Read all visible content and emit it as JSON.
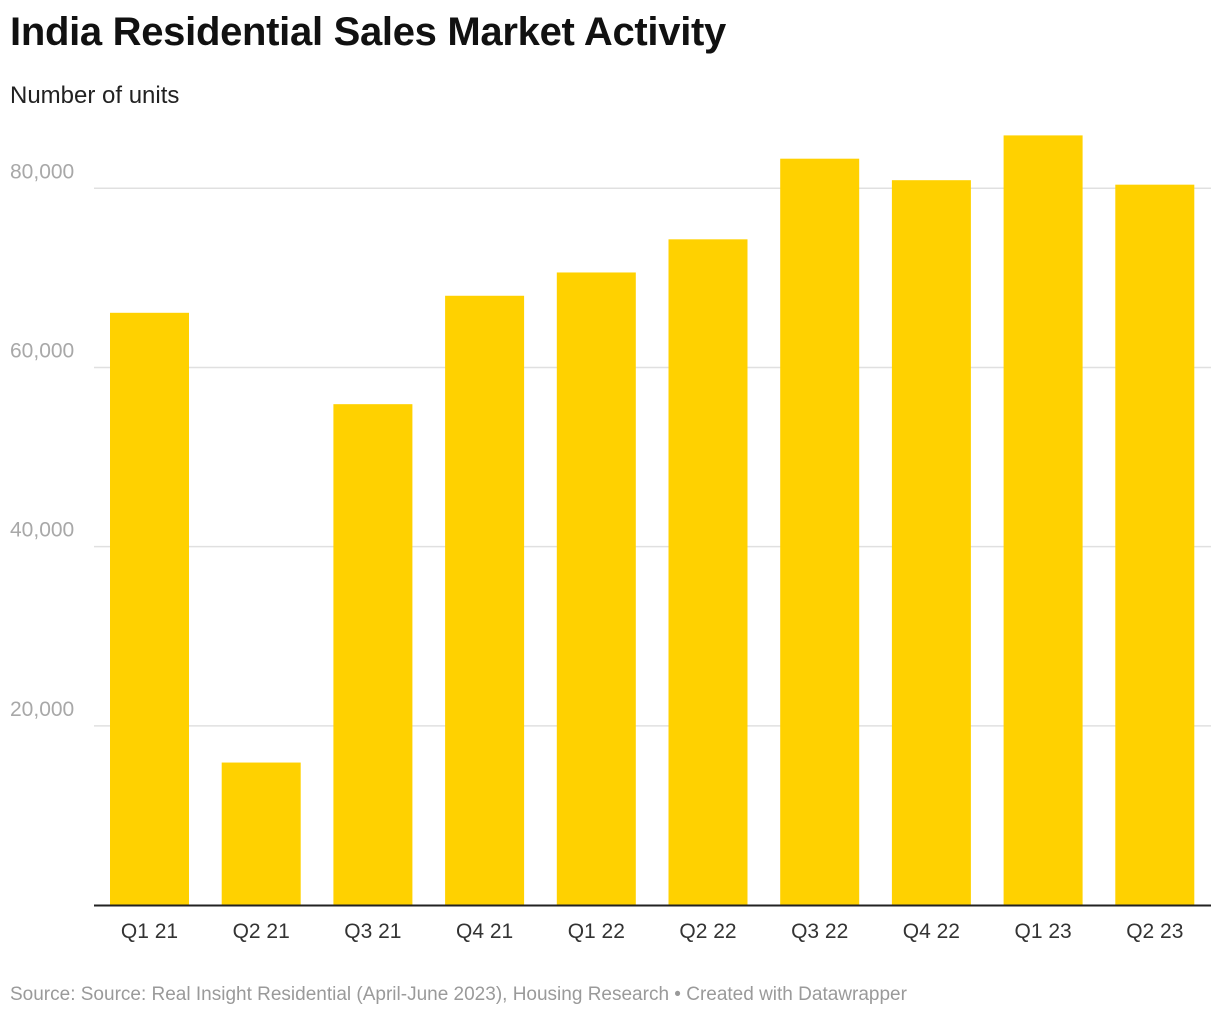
{
  "chart_data": {
    "type": "bar",
    "title": "India Residential Sales Market Activity",
    "subtitle": "Number of units",
    "categories": [
      "Q1 21",
      "Q2 21",
      "Q3 21",
      "Q4 21",
      "Q1 22",
      "Q2 22",
      "Q3 22",
      "Q4 22",
      "Q1 23",
      "Q2 23"
    ],
    "values": [
      66100,
      15900,
      55900,
      68000,
      70600,
      74300,
      83300,
      80900,
      85900,
      80400
    ],
    "ylim": [
      0,
      86000
    ],
    "yticks": [
      20000,
      40000,
      60000,
      80000
    ],
    "ytick_labels": [
      "20,000",
      "40,000",
      "60,000",
      "80,000"
    ],
    "grid": true,
    "bar_color": "#ffd100",
    "xlabel": "",
    "ylabel": ""
  },
  "footer": {
    "text": "Source: Source: Real Insight Residential (April-June 2023), Housing Research • Created with Datawrapper"
  }
}
